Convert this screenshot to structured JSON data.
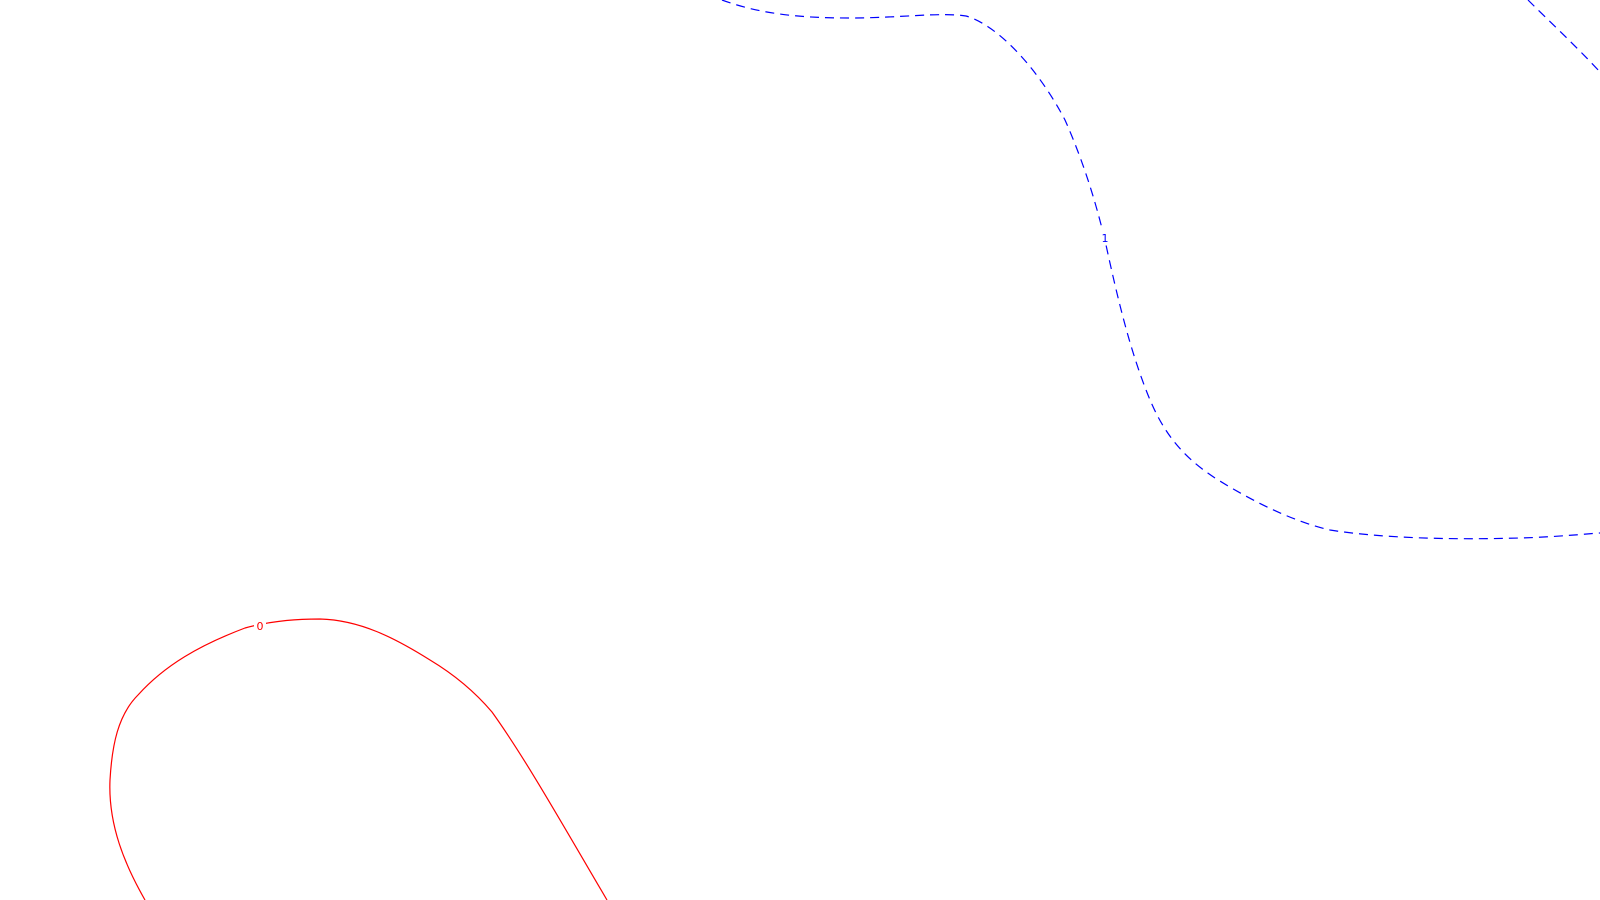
{
  "contours": [
    {
      "level": "0",
      "color": "#ff0000",
      "style": "solid"
    },
    {
      "level": "1",
      "color": "#0000ff",
      "style": "dashed"
    }
  ]
}
